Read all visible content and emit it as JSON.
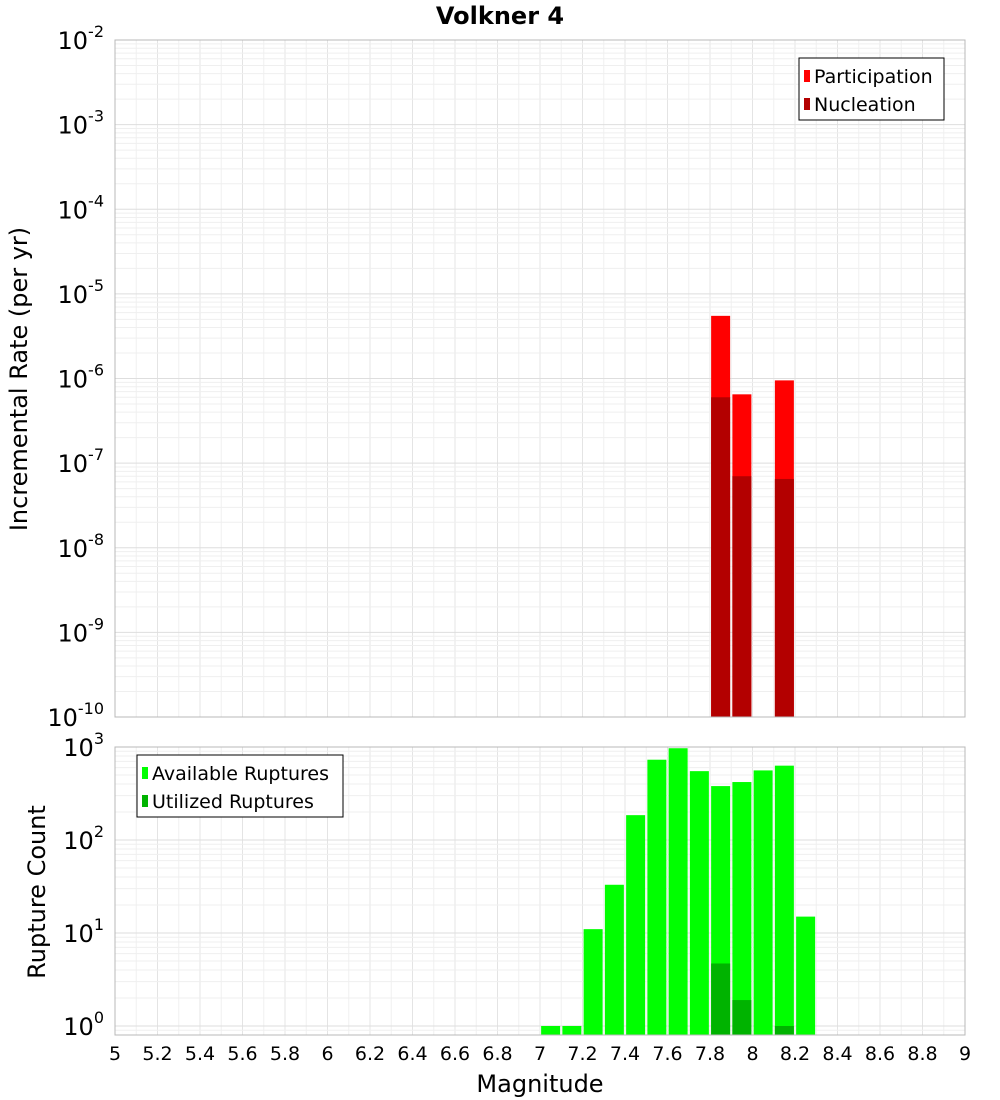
{
  "chart_data": [
    {
      "type": "bar",
      "title": "Volkner 4",
      "xlabel": "",
      "ylabel": "Incremental Rate (per yr)",
      "yscale": "log",
      "ylim": [
        1e-10,
        0.01
      ],
      "xlim": [
        5,
        9
      ],
      "grid": true,
      "legend_position": "top-right",
      "y_ticks": [
        {
          "value": 1e-10,
          "base": "10",
          "exp": "-10"
        },
        {
          "value": 1e-09,
          "base": "10",
          "exp": "-9"
        },
        {
          "value": 1e-08,
          "base": "10",
          "exp": "-8"
        },
        {
          "value": 1e-07,
          "base": "10",
          "exp": "-7"
        },
        {
          "value": 1e-06,
          "base": "10",
          "exp": "-6"
        },
        {
          "value": 1e-05,
          "base": "10",
          "exp": "-5"
        },
        {
          "value": 0.0001,
          "base": "10",
          "exp": "-4"
        },
        {
          "value": 0.001,
          "base": "10",
          "exp": "-3"
        },
        {
          "value": 0.01,
          "base": "10",
          "exp": "-2"
        }
      ],
      "x": [
        7.85,
        7.95,
        8.15
      ],
      "series": [
        {
          "name": "Participation",
          "color": "#ff0000",
          "values": [
            5.5e-06,
            6.5e-07,
            9.5e-07
          ]
        },
        {
          "name": "Nucleation",
          "color": "#b30000",
          "values": [
            6e-07,
            7e-08,
            6.5e-08
          ]
        }
      ]
    },
    {
      "type": "bar",
      "xlabel": "Magnitude",
      "ylabel": "Rupture Count",
      "yscale": "log",
      "ylim": [
        0.8,
        1000
      ],
      "xlim": [
        5,
        9
      ],
      "grid": true,
      "legend_position": "top-left",
      "y_ticks": [
        {
          "value": 1,
          "base": "10",
          "exp": "0"
        },
        {
          "value": 10,
          "base": "10",
          "exp": "1"
        },
        {
          "value": 100,
          "base": "10",
          "exp": "2"
        },
        {
          "value": 1000,
          "base": "10",
          "exp": "3"
        }
      ],
      "x_ticks": [
        "5",
        "5.2",
        "5.4",
        "5.6",
        "5.8",
        "6",
        "6.2",
        "6.4",
        "6.6",
        "6.8",
        "7",
        "7.2",
        "7.4",
        "7.6",
        "7.8",
        "8",
        "8.2",
        "8.4",
        "8.6",
        "8.8",
        "9"
      ],
      "x": [
        7.05,
        7.15,
        7.25,
        7.35,
        7.45,
        7.55,
        7.65,
        7.75,
        7.85,
        7.95,
        8.05,
        8.15,
        8.25
      ],
      "series": [
        {
          "name": "Available Ruptures",
          "color": "#00ff00",
          "values": [
            1,
            1,
            11,
            33,
            185,
            730,
            970,
            550,
            380,
            420,
            560,
            630,
            15
          ]
        },
        {
          "name": "Utilized Ruptures",
          "color": "#00b300",
          "values": [
            null,
            null,
            null,
            null,
            null,
            null,
            null,
            null,
            4.7,
            1.9,
            null,
            1,
            null
          ]
        }
      ]
    }
  ]
}
